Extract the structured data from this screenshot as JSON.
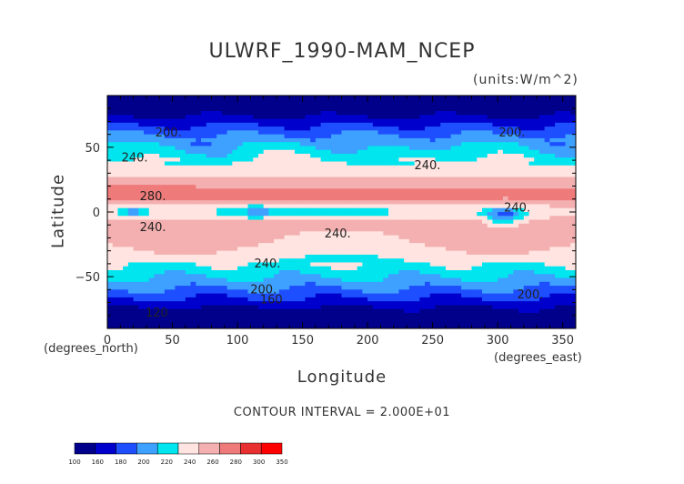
{
  "chart_data": {
    "type": "heatmap",
    "title": "ULWRF_1990-MAM_NCEP",
    "units_label": "(units:W/m^2)",
    "xlabel": "Longitude",
    "ylabel": "Latitude",
    "x_unit_label": "(degrees_east)",
    "y_unit_label": "(degrees_north)",
    "xlim": [
      0,
      360
    ],
    "ylim": [
      -90,
      90
    ],
    "x_ticks": [
      0,
      50,
      100,
      150,
      200,
      250,
      300,
      350
    ],
    "y_ticks": [
      -50,
      0,
      50
    ],
    "contour_interval_text": "CONTOUR INTERVAL = 2.000E+01",
    "contour_labels": [
      {
        "text": "200.",
        "lon": 47,
        "lat": 61
      },
      {
        "text": "200.",
        "lon": 311,
        "lat": 61
      },
      {
        "text": "240.",
        "lon": 21,
        "lat": 42
      },
      {
        "text": "240.",
        "lon": 246,
        "lat": 36
      },
      {
        "text": "280.",
        "lon": 35,
        "lat": 12
      },
      {
        "text": "240.",
        "lon": 35,
        "lat": -12
      },
      {
        "text": "240.",
        "lon": 315,
        "lat": 3
      },
      {
        "text": "240.",
        "lon": 177,
        "lat": -17
      },
      {
        "text": "240.",
        "lon": 123,
        "lat": -40
      },
      {
        "text": "200.",
        "lon": 120,
        "lat": -60
      },
      {
        "text": "200.",
        "lon": 325,
        "lat": -64
      },
      {
        "text": "160",
        "lon": 126,
        "lat": -68
      },
      {
        "text": "120",
        "lon": 38,
        "lat": -78
      }
    ],
    "colorbar": {
      "levels": [
        "100",
        "160",
        "180",
        "200",
        "220",
        "240",
        "260",
        "280",
        "300",
        "350"
      ],
      "colors": [
        "#00008b",
        "#0000cd",
        "#1e4fff",
        "#3ea0ff",
        "#00e5ee",
        "#ffe4e1",
        "#f4b0b0",
        "#ef7a7a",
        "#e83030",
        "#ff0000"
      ]
    },
    "bands": [
      {
        "lat": [
          72,
          90
        ],
        "value": "100-160"
      },
      {
        "lat": [
          58,
          72
        ],
        "value": "200-220"
      },
      {
        "lat": [
          44,
          58
        ],
        "value": "220-240"
      },
      {
        "lat": [
          28,
          44
        ],
        "value": "240-260"
      },
      {
        "lat": [
          8,
          28
        ],
        "value": "260-300"
      },
      {
        "lat": [
          -10,
          8
        ],
        "value": "240-260"
      },
      {
        "lat": [
          -30,
          -10
        ],
        "value": "260-280"
      },
      {
        "lat": [
          -50,
          -30
        ],
        "value": "240-260"
      },
      {
        "lat": [
          -60,
          -50
        ],
        "value": "220-240"
      },
      {
        "lat": [
          -72,
          -60
        ],
        "value": "180-220"
      },
      {
        "lat": [
          -90,
          -72
        ],
        "value": "100-160"
      }
    ]
  }
}
